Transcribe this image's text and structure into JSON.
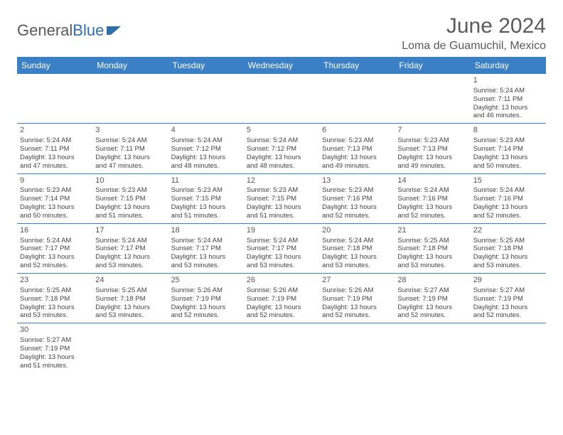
{
  "brand": {
    "part1": "General",
    "part2": "Blue"
  },
  "title": "June 2024",
  "location": "Loma de Guamuchil, Mexico",
  "colors": {
    "header_bg": "#3b7fc4",
    "header_text": "#ffffff",
    "cell_border": "#3b7fc4",
    "text": "#444444",
    "title_color": "#5a5a5a"
  },
  "weekdays": [
    "Sunday",
    "Monday",
    "Tuesday",
    "Wednesday",
    "Thursday",
    "Friday",
    "Saturday"
  ],
  "weeks": [
    [
      null,
      null,
      null,
      null,
      null,
      null,
      {
        "n": "1",
        "sr": "Sunrise: 5:24 AM",
        "ss": "Sunset: 7:11 PM",
        "d1": "Daylight: 13 hours",
        "d2": "and 46 minutes."
      }
    ],
    [
      {
        "n": "2",
        "sr": "Sunrise: 5:24 AM",
        "ss": "Sunset: 7:11 PM",
        "d1": "Daylight: 13 hours",
        "d2": "and 47 minutes."
      },
      {
        "n": "3",
        "sr": "Sunrise: 5:24 AM",
        "ss": "Sunset: 7:11 PM",
        "d1": "Daylight: 13 hours",
        "d2": "and 47 minutes."
      },
      {
        "n": "4",
        "sr": "Sunrise: 5:24 AM",
        "ss": "Sunset: 7:12 PM",
        "d1": "Daylight: 13 hours",
        "d2": "and 48 minutes."
      },
      {
        "n": "5",
        "sr": "Sunrise: 5:24 AM",
        "ss": "Sunset: 7:12 PM",
        "d1": "Daylight: 13 hours",
        "d2": "and 48 minutes."
      },
      {
        "n": "6",
        "sr": "Sunrise: 5:23 AM",
        "ss": "Sunset: 7:13 PM",
        "d1": "Daylight: 13 hours",
        "d2": "and 49 minutes."
      },
      {
        "n": "7",
        "sr": "Sunrise: 5:23 AM",
        "ss": "Sunset: 7:13 PM",
        "d1": "Daylight: 13 hours",
        "d2": "and 49 minutes."
      },
      {
        "n": "8",
        "sr": "Sunrise: 5:23 AM",
        "ss": "Sunset: 7:14 PM",
        "d1": "Daylight: 13 hours",
        "d2": "and 50 minutes."
      }
    ],
    [
      {
        "n": "9",
        "sr": "Sunrise: 5:23 AM",
        "ss": "Sunset: 7:14 PM",
        "d1": "Daylight: 13 hours",
        "d2": "and 50 minutes."
      },
      {
        "n": "10",
        "sr": "Sunrise: 5:23 AM",
        "ss": "Sunset: 7:15 PM",
        "d1": "Daylight: 13 hours",
        "d2": "and 51 minutes."
      },
      {
        "n": "11",
        "sr": "Sunrise: 5:23 AM",
        "ss": "Sunset: 7:15 PM",
        "d1": "Daylight: 13 hours",
        "d2": "and 51 minutes."
      },
      {
        "n": "12",
        "sr": "Sunrise: 5:23 AM",
        "ss": "Sunset: 7:15 PM",
        "d1": "Daylight: 13 hours",
        "d2": "and 51 minutes."
      },
      {
        "n": "13",
        "sr": "Sunrise: 5:23 AM",
        "ss": "Sunset: 7:16 PM",
        "d1": "Daylight: 13 hours",
        "d2": "and 52 minutes."
      },
      {
        "n": "14",
        "sr": "Sunrise: 5:24 AM",
        "ss": "Sunset: 7:16 PM",
        "d1": "Daylight: 13 hours",
        "d2": "and 52 minutes."
      },
      {
        "n": "15",
        "sr": "Sunrise: 5:24 AM",
        "ss": "Sunset: 7:16 PM",
        "d1": "Daylight: 13 hours",
        "d2": "and 52 minutes."
      }
    ],
    [
      {
        "n": "16",
        "sr": "Sunrise: 5:24 AM",
        "ss": "Sunset: 7:17 PM",
        "d1": "Daylight: 13 hours",
        "d2": "and 52 minutes."
      },
      {
        "n": "17",
        "sr": "Sunrise: 5:24 AM",
        "ss": "Sunset: 7:17 PM",
        "d1": "Daylight: 13 hours",
        "d2": "and 53 minutes."
      },
      {
        "n": "18",
        "sr": "Sunrise: 5:24 AM",
        "ss": "Sunset: 7:17 PM",
        "d1": "Daylight: 13 hours",
        "d2": "and 53 minutes."
      },
      {
        "n": "19",
        "sr": "Sunrise: 5:24 AM",
        "ss": "Sunset: 7:17 PM",
        "d1": "Daylight: 13 hours",
        "d2": "and 53 minutes."
      },
      {
        "n": "20",
        "sr": "Sunrise: 5:24 AM",
        "ss": "Sunset: 7:18 PM",
        "d1": "Daylight: 13 hours",
        "d2": "and 53 minutes."
      },
      {
        "n": "21",
        "sr": "Sunrise: 5:25 AM",
        "ss": "Sunset: 7:18 PM",
        "d1": "Daylight: 13 hours",
        "d2": "and 53 minutes."
      },
      {
        "n": "22",
        "sr": "Sunrise: 5:25 AM",
        "ss": "Sunset: 7:18 PM",
        "d1": "Daylight: 13 hours",
        "d2": "and 53 minutes."
      }
    ],
    [
      {
        "n": "23",
        "sr": "Sunrise: 5:25 AM",
        "ss": "Sunset: 7:18 PM",
        "d1": "Daylight: 13 hours",
        "d2": "and 53 minutes."
      },
      {
        "n": "24",
        "sr": "Sunrise: 5:25 AM",
        "ss": "Sunset: 7:18 PM",
        "d1": "Daylight: 13 hours",
        "d2": "and 53 minutes."
      },
      {
        "n": "25",
        "sr": "Sunrise: 5:26 AM",
        "ss": "Sunset: 7:19 PM",
        "d1": "Daylight: 13 hours",
        "d2": "and 52 minutes."
      },
      {
        "n": "26",
        "sr": "Sunrise: 5:26 AM",
        "ss": "Sunset: 7:19 PM",
        "d1": "Daylight: 13 hours",
        "d2": "and 52 minutes."
      },
      {
        "n": "27",
        "sr": "Sunrise: 5:26 AM",
        "ss": "Sunset: 7:19 PM",
        "d1": "Daylight: 13 hours",
        "d2": "and 52 minutes."
      },
      {
        "n": "28",
        "sr": "Sunrise: 5:27 AM",
        "ss": "Sunset: 7:19 PM",
        "d1": "Daylight: 13 hours",
        "d2": "and 52 minutes."
      },
      {
        "n": "29",
        "sr": "Sunrise: 5:27 AM",
        "ss": "Sunset: 7:19 PM",
        "d1": "Daylight: 13 hours",
        "d2": "and 52 minutes."
      }
    ],
    [
      {
        "n": "30",
        "sr": "Sunrise: 5:27 AM",
        "ss": "Sunset: 7:19 PM",
        "d1": "Daylight: 13 hours",
        "d2": "and 51 minutes."
      },
      null,
      null,
      null,
      null,
      null,
      null
    ]
  ]
}
